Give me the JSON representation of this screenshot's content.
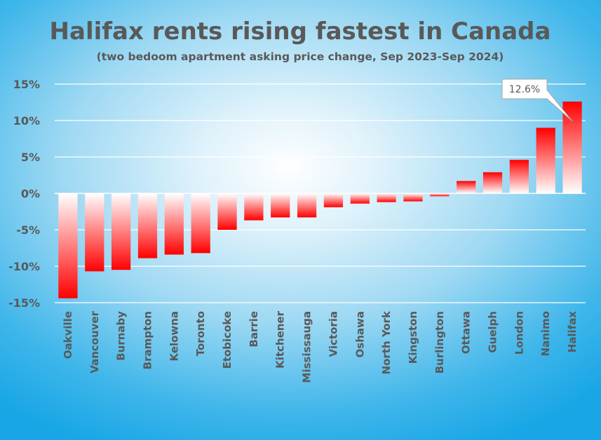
{
  "chart_data": {
    "type": "bar",
    "title": "Halifax rents rising fastest in Canada",
    "subtitle": "(two bedoom apartment asking price change, Sep 2023-Sep 2024)",
    "categories": [
      "Oakville",
      "Vancouver",
      "Burnaby",
      "Brampton",
      "Kelowna",
      "Toronto",
      "Etobicoke",
      "Barrie",
      "Kitchener",
      "Mississauga",
      "Victoria",
      "Oshawa",
      "North York",
      "Kingston",
      "Burlington",
      "Ottawa",
      "Guelph",
      "London",
      "Nanimo",
      "Halifax"
    ],
    "values": [
      -14.4,
      -10.7,
      -10.5,
      -8.9,
      -8.4,
      -8.2,
      -5.0,
      -3.7,
      -3.3,
      -3.3,
      -1.9,
      -1.4,
      -1.2,
      -1.1,
      -0.4,
      1.7,
      2.9,
      4.6,
      9.0,
      12.6
    ],
    "ylim": [
      -15,
      15
    ],
    "yticks": [
      15,
      10,
      5,
      0,
      -5,
      -10,
      -15
    ],
    "ytick_labels": [
      "15%",
      "10%",
      "5%",
      "0%",
      "-5%",
      "-10%",
      "-15%"
    ],
    "annotation": {
      "category": "Halifax",
      "text": "12.6%"
    },
    "grid": true,
    "legend": "none",
    "colors": {
      "bar": "#ff0000",
      "bar_fade": "#ffffff",
      "text": "#595959",
      "grid": "#ffffff"
    }
  }
}
